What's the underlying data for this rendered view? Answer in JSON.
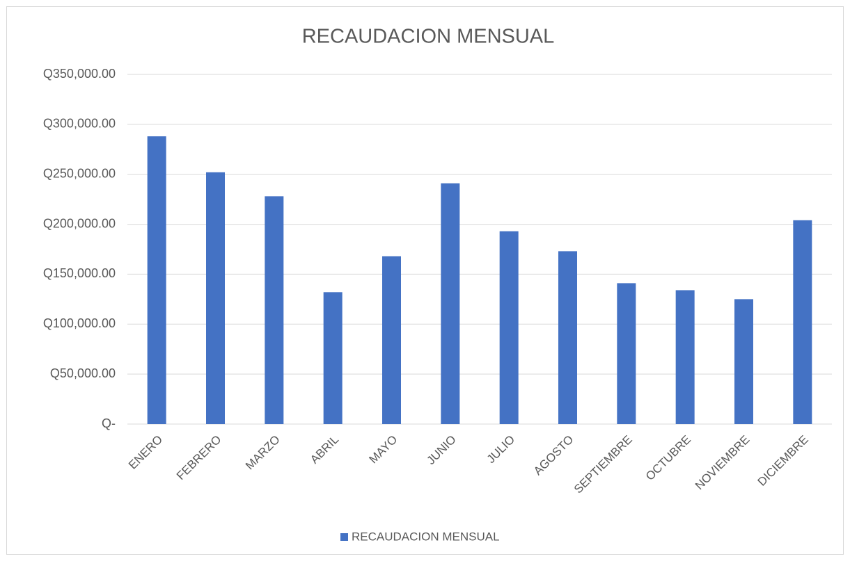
{
  "chart_data": {
    "type": "bar",
    "title": "RECAUDACION MENSUAL",
    "categories": [
      "ENERO",
      "FEBRERO",
      "MARZO",
      "ABRIL",
      "MAYO",
      "JUNIO",
      "JULIO",
      "AGOSTO",
      "SEPTIEMBRE",
      "OCTUBRE",
      "NOVIEMBRE",
      "DICIEMBRE"
    ],
    "series": [
      {
        "name": "RECAUDACION MENSUAL",
        "color": "#4472c4",
        "values": [
          288000,
          252000,
          228000,
          132000,
          168000,
          241000,
          193000,
          173000,
          141000,
          134000,
          125000,
          204000
        ]
      }
    ],
    "ylim": [
      0,
      350000
    ],
    "yticks": [
      {
        "value": 0,
        "label": "Q-"
      },
      {
        "value": 50000,
        "label": "Q50,000.00"
      },
      {
        "value": 100000,
        "label": "Q100,000.00"
      },
      {
        "value": 150000,
        "label": "Q150,000.00"
      },
      {
        "value": 200000,
        "label": "Q200,000.00"
      },
      {
        "value": 250000,
        "label": "Q250,000.00"
      },
      {
        "value": 300000,
        "label": "Q300,000.00"
      },
      {
        "value": 350000,
        "label": "Q350,000.00"
      }
    ],
    "grid": true,
    "legend": "bottom"
  }
}
